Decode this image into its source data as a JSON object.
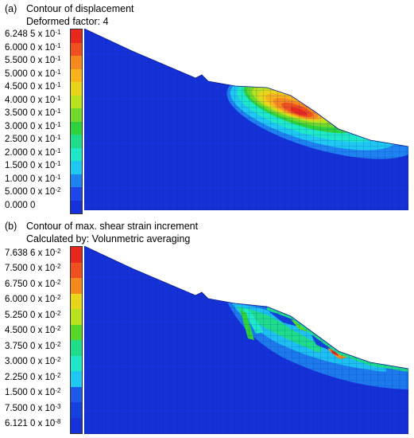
{
  "panel_a": {
    "label": "(a)",
    "title": "Contour of displacement",
    "subtitle": "Deformed factor: 4",
    "legend": [
      {
        "mant": "6.248 5 x 10",
        "exp": "-1",
        "color": "#e8281e"
      },
      {
        "mant": "6.000 0 x 10",
        "exp": "-1",
        "color": "#f05020"
      },
      {
        "mant": "5.500 0 x 10",
        "exp": "-1",
        "color": "#f58a1e"
      },
      {
        "mant": "5.000 0 x 10",
        "exp": "-1",
        "color": "#f7b21c"
      },
      {
        "mant": "4.500 0 x 10",
        "exp": "-1",
        "color": "#e8d61a"
      },
      {
        "mant": "4.000 0 x 10",
        "exp": "-1",
        "color": "#b8e21e"
      },
      {
        "mant": "3.500 0 x 10",
        "exp": "-1",
        "color": "#72d82a"
      },
      {
        "mant": "3.000 0 x 10",
        "exp": "-1",
        "color": "#2ed23c"
      },
      {
        "mant": "2.500 0 x 10",
        "exp": "-1",
        "color": "#1edc8a"
      },
      {
        "mant": "2.000 0 x 10",
        "exp": "-1",
        "color": "#1ee8c8"
      },
      {
        "mant": "1.500 0 x 10",
        "exp": "-1",
        "color": "#1ec8f0"
      },
      {
        "mant": "1.000 0 x 10",
        "exp": "-1",
        "color": "#1e82f0"
      },
      {
        "mant": "5.000 0 x 10",
        "exp": "-2",
        "color": "#1e46e8"
      },
      {
        "mant": "0.000 0",
        "exp": "",
        "color": "#1432d8"
      }
    ]
  },
  "panel_b": {
    "label": "(b)",
    "title": "Contour of max. shear strain increment",
    "subtitle": "Calculated by: Volunmetric averaging",
    "legend": [
      {
        "mant": "7.638 6 x 10",
        "exp": "-2",
        "color": "#e8281e"
      },
      {
        "mant": "7.500 0 x 10",
        "exp": "-2",
        "color": "#f05020"
      },
      {
        "mant": "6.750 0 x 10",
        "exp": "-2",
        "color": "#f58a1e"
      },
      {
        "mant": "6.000 0 x 10",
        "exp": "-2",
        "color": "#e8d61a"
      },
      {
        "mant": "5.250 0 x 10",
        "exp": "-2",
        "color": "#b8e21e"
      },
      {
        "mant": "4.500 0 x 10",
        "exp": "-2",
        "color": "#5ad82a"
      },
      {
        "mant": "3.750 0 x 10",
        "exp": "-2",
        "color": "#1edc8a"
      },
      {
        "mant": "3.000 0 x 10",
        "exp": "-2",
        "color": "#1ee8c8"
      },
      {
        "mant": "2.250 0 x 10",
        "exp": "-2",
        "color": "#1ec8f0"
      },
      {
        "mant": "1.500 0 x 10",
        "exp": "-2",
        "color": "#1e5ae8"
      },
      {
        "mant": "7.500 0 x 10",
        "exp": "-3",
        "color": "#1440dc"
      },
      {
        "mant": "6.121 0 x 10",
        "exp": "-8",
        "color": "#1432d8"
      }
    ]
  },
  "colors": {
    "soil_base": "#1432d8",
    "mesh_line": "#0a1c8c"
  }
}
